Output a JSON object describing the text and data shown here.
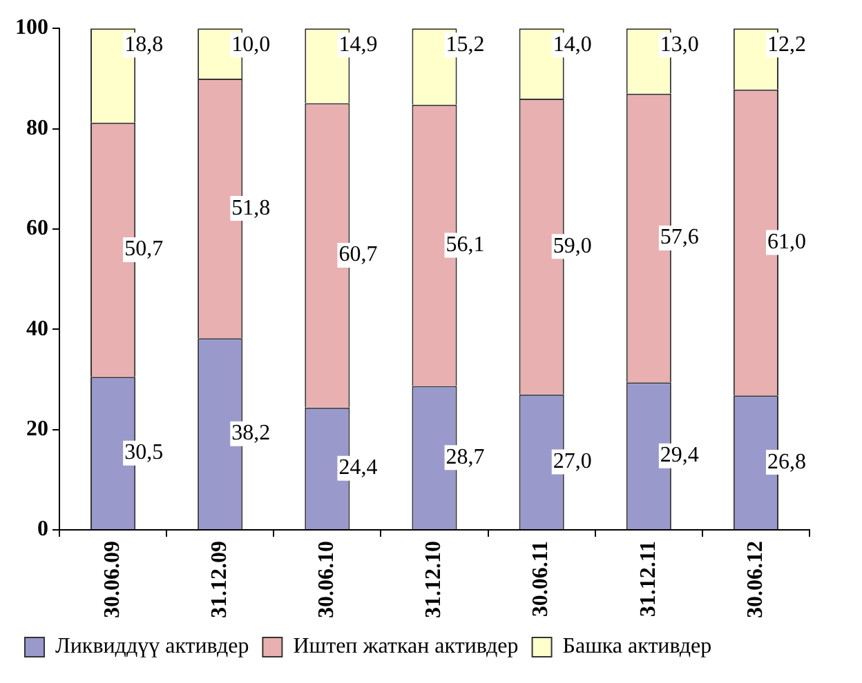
{
  "chart_data": {
    "type": "bar",
    "stacked": true,
    "categories": [
      "30.06.09",
      "31.12.09",
      "30.06.10",
      "31.12.10",
      "30.06.11",
      "31.12.11",
      "30.06.12"
    ],
    "series": [
      {
        "name": "Ликвиддүү активдер",
        "color": "#9999cc",
        "values": [
          30.5,
          38.2,
          24.4,
          28.7,
          27.0,
          29.4,
          26.8
        ],
        "value_labels": [
          "30,5",
          "38,2",
          "24,4",
          "28,7",
          "27,0",
          "29,4",
          "26,8"
        ]
      },
      {
        "name": "Иштеп жаткан активдер",
        "color": "#e8b0b0",
        "values": [
          50.7,
          51.8,
          60.7,
          56.1,
          59.0,
          57.6,
          61.0
        ],
        "value_labels": [
          "50,7",
          "51,8",
          "60,7",
          "56,1",
          "59,0",
          "57,6",
          "61,0"
        ]
      },
      {
        "name": "Башка активдер",
        "color": "#ffffcc",
        "values": [
          18.8,
          10.0,
          14.9,
          15.2,
          14.0,
          13.0,
          12.2
        ],
        "value_labels": [
          "18,8",
          "10,0",
          "14,9",
          "15,2",
          "14,0",
          "13,0",
          "12,2"
        ]
      }
    ],
    "ylim": [
      0,
      100
    ],
    "yticks": [
      0,
      20,
      40,
      60,
      80,
      100
    ],
    "grid": false,
    "legend": "bottom"
  }
}
